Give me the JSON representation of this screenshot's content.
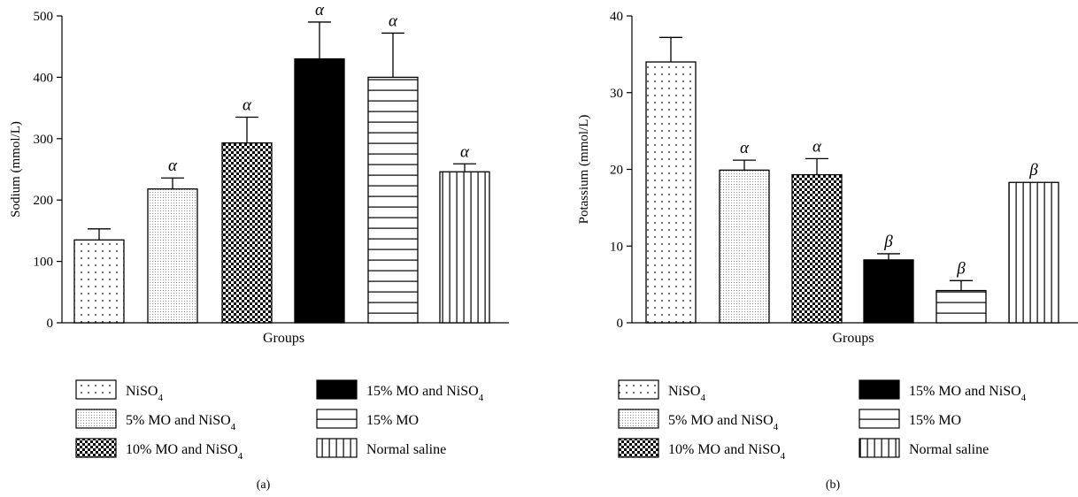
{
  "chart_data": [
    {
      "type": "bar",
      "panel_label": "(a)",
      "title": "",
      "xlabel": "Groups",
      "ylabel": "Sodium (mmol/L)",
      "ylim": [
        0,
        500
      ],
      "yticks": [
        0,
        100,
        200,
        300,
        400,
        500
      ],
      "categories": [
        "NiSO4",
        "5% MO and NiSO4",
        "10% MO and NiSO4",
        "15% MO and NiSO4",
        "15% MO",
        "Normal saline"
      ],
      "values": [
        135,
        218,
        293,
        430,
        400,
        246
      ],
      "error_upper": [
        18,
        18,
        42,
        60,
        72,
        13
      ],
      "annotations": [
        "",
        "α",
        "α",
        "α",
        "α",
        "α"
      ],
      "patterns": [
        "dots-sparse",
        "dots-fine",
        "checker",
        "solid",
        "hlines",
        "vlines"
      ],
      "grid": false,
      "legend_placement": "bottom"
    },
    {
      "type": "bar",
      "panel_label": "(b)",
      "title": "",
      "xlabel": "Groups",
      "ylabel": "Potassium (mmol/L)",
      "ylim": [
        0,
        40
      ],
      "yticks": [
        0,
        10,
        20,
        30,
        40
      ],
      "categories": [
        "NiSO4",
        "5% MO and NiSO4",
        "10% MO and NiSO4",
        "15% MO and NiSO4",
        "15% MO",
        "Normal saline"
      ],
      "values": [
        34,
        19.9,
        19.3,
        8.2,
        4.2,
        18.3
      ],
      "error_upper": [
        3.2,
        1.3,
        2.1,
        0.8,
        1.3,
        0
      ],
      "annotations": [
        "",
        "α",
        "α",
        "β",
        "β",
        "β"
      ],
      "patterns": [
        "dots-sparse",
        "dots-fine",
        "checker",
        "solid",
        "hlines",
        "vlines"
      ],
      "grid": false,
      "legend_placement": "bottom"
    }
  ],
  "legend": [
    {
      "base": "NiSO",
      "sub": "4",
      "tail": "",
      "pattern": "dots-sparse"
    },
    {
      "base": "5% MO and NiSO",
      "sub": "4",
      "tail": "",
      "pattern": "dots-fine"
    },
    {
      "base": "10% MO and NiSO",
      "sub": "4",
      "tail": "",
      "pattern": "checker"
    },
    {
      "base": "15% MO and NiSO",
      "sub": "4",
      "tail": "",
      "pattern": "solid"
    },
    {
      "base": "15% MO",
      "sub": "",
      "tail": "",
      "pattern": "hlines"
    },
    {
      "base": "Normal saline",
      "sub": "",
      "tail": "",
      "pattern": "vlines"
    }
  ],
  "colors": {
    "ink": "#000000",
    "background": "#ffffff"
  }
}
